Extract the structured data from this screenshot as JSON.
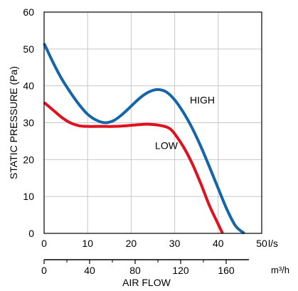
{
  "chart_data": {
    "type": "line",
    "title": "",
    "ylabel": "STATIC PRESSURE (Pa)",
    "xlabel": "AIR FLOW",
    "x_unit": "l/s",
    "x2_unit": "m³/h",
    "xlim": [
      0,
      50
    ],
    "ylim": [
      0,
      60
    ],
    "x_ticks": [
      0,
      10,
      20,
      30,
      40,
      50
    ],
    "y_ticks": [
      0,
      10,
      20,
      30,
      40,
      50,
      60
    ],
    "x2_lim": [
      0,
      180
    ],
    "x2_ticks": [
      0,
      40,
      80,
      120,
      160
    ],
    "x2_minor_ticks": [
      20,
      60,
      100,
      140
    ],
    "grid": true,
    "series": [
      {
        "name": "HIGH",
        "color": "#1565a8",
        "x": [
          0,
          2,
          4,
          6,
          8,
          10,
          12,
          14,
          16,
          18,
          20,
          22,
          24,
          26,
          28,
          30,
          32,
          34,
          36,
          38,
          40,
          42,
          44,
          46
        ],
        "y": [
          51.5,
          46.5,
          42,
          38.3,
          35,
          32.3,
          30.7,
          30,
          30.6,
          32.3,
          34.5,
          36.7,
          38.3,
          39,
          38.4,
          36.2,
          32.8,
          28.6,
          23.6,
          18,
          12.2,
          6.5,
          2,
          0
        ]
      },
      {
        "name": "LOW",
        "color": "#e0101e",
        "x": [
          0,
          2,
          4,
          6,
          8,
          10,
          12,
          14,
          16,
          18,
          20,
          22,
          24,
          26,
          28,
          29,
          30,
          32,
          34,
          36,
          38,
          40,
          41
        ],
        "y": [
          35.5,
          33.5,
          31.5,
          30,
          29.2,
          29,
          29,
          29,
          29,
          29.1,
          29.3,
          29.5,
          29.6,
          29.4,
          28.9,
          28.3,
          27,
          23.5,
          19,
          13.5,
          7.5,
          2.5,
          0
        ]
      }
    ],
    "annotations": [
      {
        "text": "HIGH",
        "x": 33.5,
        "y": 36.2
      },
      {
        "text": "LOW",
        "x": 25.5,
        "y": 23.8
      }
    ]
  }
}
